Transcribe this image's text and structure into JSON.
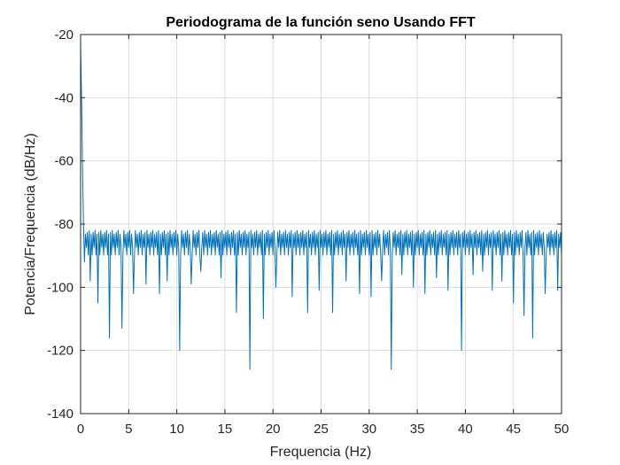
{
  "chart_data": {
    "type": "line",
    "title": "Periodograma de la función seno Usando FFT",
    "xlabel": "Frequencia (Hz)",
    "ylabel": "Potencia/Frequencia (dB/Hz)",
    "xlim": [
      0,
      50
    ],
    "ylim": [
      -140,
      -20
    ],
    "xticks": [
      0,
      5,
      10,
      15,
      20,
      25,
      30,
      35,
      40,
      45,
      50
    ],
    "yticks": [
      -140,
      -120,
      -100,
      -80,
      -60,
      -40,
      -20
    ],
    "xtick_labels": [
      "0",
      "5",
      "10",
      "15",
      "20",
      "25",
      "30",
      "35",
      "40",
      "45",
      "50"
    ],
    "ytick_labels": [
      "-140",
      "-120",
      "-100",
      "-80",
      "-60",
      "-40",
      "-20"
    ],
    "grid": true,
    "line_color": "#0072BD",
    "series": [
      {
        "peak": [
          [
            0,
            -23
          ],
          [
            0.1,
            -40
          ],
          [
            0.2,
            -62
          ],
          [
            0.3,
            -80
          ]
        ],
        "noise_floor_db": [
          -82,
          -91
        ],
        "notches": [
          [
            0.4,
            -92
          ],
          [
            1.0,
            -98
          ],
          [
            1.8,
            -105
          ],
          [
            3.0,
            -116
          ],
          [
            4.3,
            -113
          ],
          [
            5.5,
            -102
          ],
          [
            6.8,
            -99
          ],
          [
            8.2,
            -102
          ],
          [
            9.0,
            -98
          ],
          [
            10.3,
            -120
          ],
          [
            11.5,
            -99
          ],
          [
            12.5,
            -95
          ],
          [
            14.6,
            -97
          ],
          [
            16.2,
            -108
          ],
          [
            17.6,
            -126
          ],
          [
            19.0,
            -110
          ],
          [
            20.3,
            -100
          ],
          [
            22.0,
            -103
          ],
          [
            23.6,
            -108
          ],
          [
            24.8,
            -101
          ],
          [
            26.2,
            -108
          ],
          [
            27.6,
            -98
          ],
          [
            29.0,
            -102
          ],
          [
            30.2,
            -103
          ],
          [
            31.3,
            -98
          ],
          [
            32.3,
            -126
          ],
          [
            33.4,
            -96
          ],
          [
            34.6,
            -100
          ],
          [
            35.8,
            -102
          ],
          [
            37.0,
            -97
          ],
          [
            38.2,
            -101
          ],
          [
            39.6,
            -120
          ],
          [
            40.8,
            -96
          ],
          [
            41.8,
            -95
          ],
          [
            42.8,
            -101
          ],
          [
            43.8,
            -98
          ],
          [
            45.0,
            -105
          ],
          [
            46.1,
            -109
          ],
          [
            47.0,
            -116
          ],
          [
            48.3,
            -102
          ],
          [
            49.6,
            -101
          ]
        ]
      }
    ]
  }
}
